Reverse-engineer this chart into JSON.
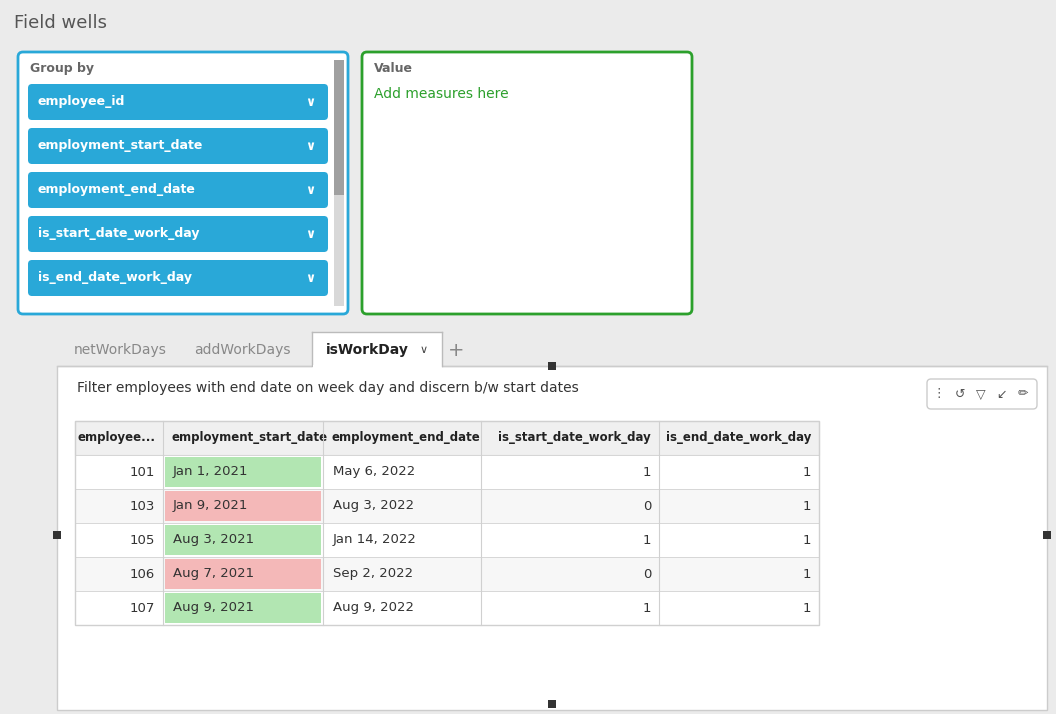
{
  "bg_color": "#ebebeb",
  "field_wells_title": "Field wells",
  "group_by_label": "Group by",
  "group_by_fields": [
    "employee_id",
    "employment_start_date",
    "employment_end_date",
    "is_start_date_work_day",
    "is_end_date_work_day"
  ],
  "value_label": "Value",
  "add_measures_text": "Add measures here",
  "add_measures_color": "#2ca02c",
  "blue_color": "#29a8d8",
  "tab_names": [
    "netWorkDays",
    "addWorkDays",
    "isWorkDay"
  ],
  "active_tab": "isWorkDay",
  "chart_title": "Filter employees with end date on week day and discern b/w start dates",
  "col_headers": [
    "employee...",
    "employment_start_date",
    "employment_end_date",
    "is_start_date_work_day",
    "is_end_date_work_day"
  ],
  "rows": [
    [
      101,
      "Jan 1, 2021",
      "May 6, 2022",
      1,
      1,
      "green"
    ],
    [
      103,
      "Jan 9, 2021",
      "Aug 3, 2022",
      0,
      1,
      "red"
    ],
    [
      105,
      "Aug 3, 2021",
      "Jan 14, 2022",
      1,
      1,
      "green"
    ],
    [
      106,
      "Aug 7, 2021",
      "Sep 2, 2022",
      0,
      1,
      "red"
    ],
    [
      107,
      "Aug 9, 2021",
      "Aug 9, 2022",
      1,
      1,
      "green"
    ]
  ],
  "green_cell": "#b2e6b2",
  "red_cell": "#f4b8b8",
  "header_bg": "#f0f0f0",
  "row_alt_bg": "#f7f7f7",
  "row_bg": "#ffffff",
  "border_color": "#d0d0d0",
  "group_by_border": "#29a8d8",
  "value_border": "#2ca02c",
  "scrollbar_bg": "#d8d8d8",
  "scrollbar_thumb": "#a0a0a0"
}
